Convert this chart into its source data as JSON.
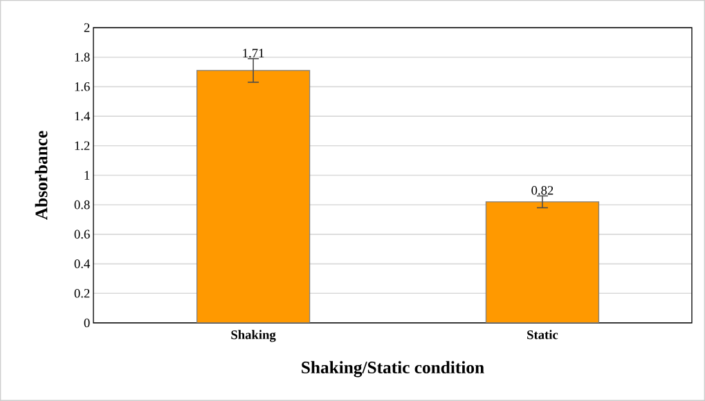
{
  "chart_data": {
    "type": "bar",
    "xlabel": "Shaking/Static condition",
    "ylabel": "Absorbance",
    "categories": [
      "Shaking",
      "Static"
    ],
    "values": [
      1.71,
      0.82
    ],
    "errors": [
      0.08,
      0.04
    ],
    "color": "#ff9900",
    "ylim": [
      0,
      2
    ],
    "yticks": [
      0,
      0.2,
      0.4,
      0.6,
      0.8,
      1,
      1.2,
      1.4,
      1.6,
      1.8,
      2
    ],
    "grid": "y",
    "data_labels": true
  }
}
